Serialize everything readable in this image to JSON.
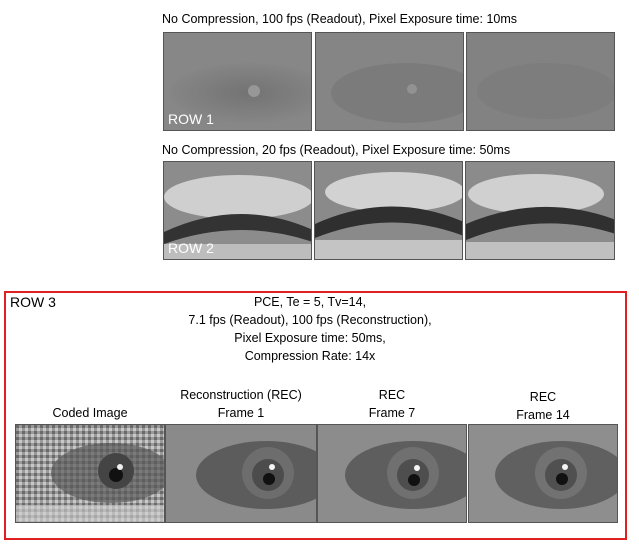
{
  "row1": {
    "caption": "No Compression, 100 fps (Readout), Pixel Exposure time: 10ms",
    "label": "ROW 1"
  },
  "row2": {
    "caption": "No Compression, 20 fps (Readout), Pixel Exposure time: 50ms",
    "label": "ROW 2"
  },
  "row3": {
    "label": "ROW 3",
    "description": [
      "PCE, Te = 5, Tv=14,",
      "7.1 fps (Readout), 100 fps (Reconstruction),",
      "Pixel Exposure time: 50ms,",
      "Compression Rate: 14x"
    ],
    "columns": [
      {
        "line1": "Coded Image",
        "line2": ""
      },
      {
        "line1": "Reconstruction (REC)",
        "line2": "Frame 1"
      },
      {
        "line1": "REC",
        "line2": "Frame 7"
      },
      {
        "line1": "REC",
        "line2": "Frame 14"
      }
    ]
  },
  "colors": {
    "frame_border": "#e02020"
  }
}
